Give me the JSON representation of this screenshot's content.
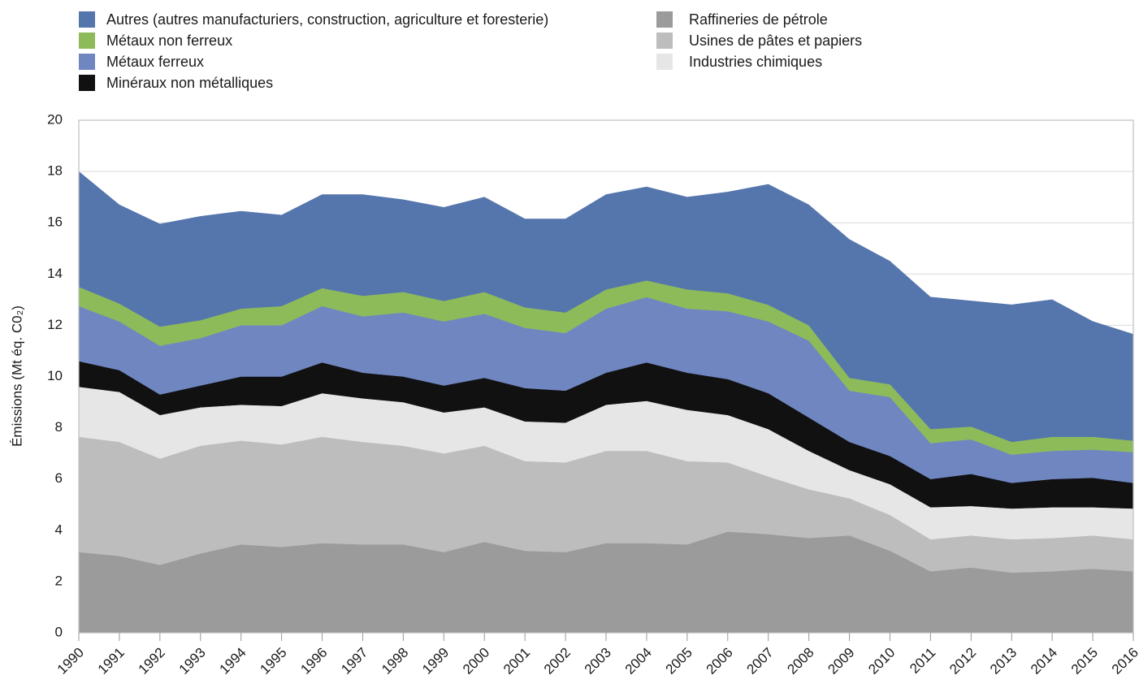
{
  "chart_data": {
    "type": "stacked-area",
    "categories": [
      "1990",
      "1991",
      "1992",
      "1993",
      "1994",
      "1995",
      "1996",
      "1997",
      "1998",
      "1999",
      "2000",
      "2001",
      "2002",
      "2003",
      "2004",
      "2005",
      "2006",
      "2007",
      "2008",
      "2009",
      "2010",
      "2011",
      "2012",
      "2013",
      "2014",
      "2015",
      "2016"
    ],
    "y_label": "Émissions (Mt éq. C0₂)",
    "ylim": [
      0,
      20
    ],
    "yticks": [
      0,
      2,
      4,
      6,
      8,
      10,
      12,
      14,
      16,
      18,
      20
    ],
    "grid": true,
    "series": [
      {
        "name": "Raffineries de pétrole",
        "color": "#9b9b9b",
        "values": [
          3.15,
          3.0,
          2.65,
          3.1,
          3.45,
          3.35,
          3.5,
          3.45,
          3.45,
          3.15,
          3.55,
          3.2,
          3.15,
          3.5,
          3.5,
          3.45,
          3.95,
          3.85,
          3.7,
          3.8,
          3.2,
          2.4,
          2.55,
          2.35,
          2.4,
          2.5,
          2.4
        ]
      },
      {
        "name": "Usines de pâtes et papiers",
        "color": "#bdbdbd",
        "values": [
          4.5,
          4.45,
          4.15,
          4.2,
          4.05,
          4.0,
          4.15,
          4.0,
          3.85,
          3.85,
          3.75,
          3.5,
          3.5,
          3.6,
          3.6,
          3.25,
          2.7,
          2.25,
          1.9,
          1.45,
          1.4,
          1.25,
          1.25,
          1.3,
          1.3,
          1.3,
          1.25
        ]
      },
      {
        "name": "Industries chimiques",
        "color": "#e6e6e6",
        "values": [
          1.95,
          1.95,
          1.7,
          1.5,
          1.4,
          1.5,
          1.7,
          1.7,
          1.7,
          1.6,
          1.5,
          1.55,
          1.55,
          1.8,
          1.95,
          2.0,
          1.85,
          1.85,
          1.5,
          1.1,
          1.2,
          1.25,
          1.15,
          1.2,
          1.2,
          1.1,
          1.2
        ]
      },
      {
        "name": "Minéraux non métalliques",
        "color": "#111111",
        "values": [
          1.0,
          0.85,
          0.8,
          0.85,
          1.1,
          1.15,
          1.2,
          1.0,
          1.0,
          1.05,
          1.15,
          1.3,
          1.25,
          1.25,
          1.5,
          1.45,
          1.4,
          1.4,
          1.3,
          1.1,
          1.1,
          1.1,
          1.25,
          1.0,
          1.1,
          1.15,
          1.0
        ]
      },
      {
        "name": "Métaux ferreux",
        "color": "#6f86c1",
        "values": [
          2.15,
          1.9,
          1.9,
          1.85,
          2.0,
          2.0,
          2.2,
          2.2,
          2.5,
          2.5,
          2.5,
          2.35,
          2.25,
          2.5,
          2.55,
          2.5,
          2.65,
          2.8,
          3.0,
          2.0,
          2.3,
          1.4,
          1.35,
          1.1,
          1.1,
          1.1,
          1.2
        ]
      },
      {
        "name": "Métaux non ferreux",
        "color": "#8dbb5a",
        "values": [
          0.75,
          0.7,
          0.75,
          0.7,
          0.65,
          0.75,
          0.7,
          0.8,
          0.8,
          0.8,
          0.85,
          0.8,
          0.8,
          0.75,
          0.65,
          0.75,
          0.7,
          0.65,
          0.6,
          0.5,
          0.5,
          0.55,
          0.5,
          0.5,
          0.55,
          0.5,
          0.45
        ]
      },
      {
        "name": "Autres (autres manufacturiers, construction, agriculture et foresterie)",
        "color": "#5576ad",
        "values": [
          4.5,
          3.85,
          4.0,
          4.05,
          3.8,
          3.55,
          3.65,
          3.95,
          3.6,
          3.65,
          3.7,
          3.45,
          3.65,
          3.7,
          3.65,
          3.6,
          3.95,
          4.7,
          4.7,
          5.4,
          4.8,
          5.15,
          4.9,
          5.35,
          5.35,
          4.5,
          4.15
        ]
      }
    ]
  }
}
